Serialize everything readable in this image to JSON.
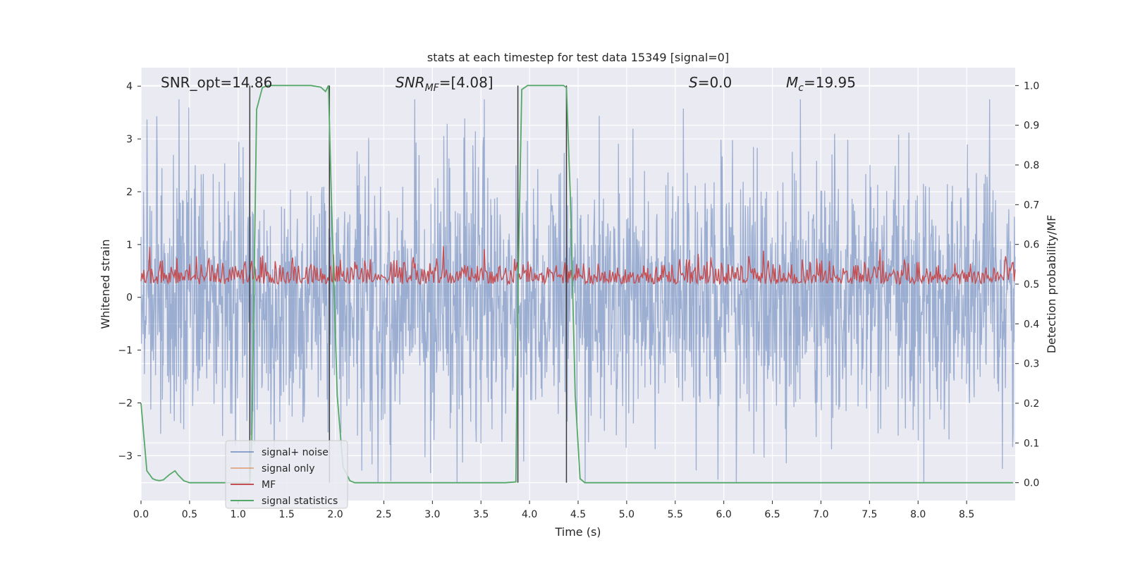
{
  "chart_data": {
    "type": "line",
    "title": "stats at each timestep for test data 15349 [signal=0]",
    "xlabel": "Time (s)",
    "ylabel": "Whitened strain",
    "y2label": "Detection probability/MF",
    "xlim": [
      0,
      9.0
    ],
    "ylim": [
      -3.85,
      4.35
    ],
    "y2lim": [
      -0.045,
      1.045
    ],
    "x_ticks": [
      "0.0",
      "0.5",
      "1.0",
      "1.5",
      "2.0",
      "2.5",
      "3.0",
      "3.5",
      "4.0",
      "4.5",
      "5.0",
      "5.5",
      "6.0",
      "6.5",
      "7.0",
      "7.5",
      "8.0",
      "8.5"
    ],
    "y_ticks": [
      "4",
      "3",
      "2",
      "1",
      "0",
      "−1",
      "−2",
      "−3"
    ],
    "y2_ticks": [
      "1.0",
      "0.9",
      "0.8",
      "0.7",
      "0.6",
      "0.5",
      "0.4",
      "0.3",
      "0.2",
      "0.1",
      "0.0"
    ],
    "grid": true,
    "annotations": [
      {
        "name": "snr-opt",
        "text": "SNR_opt=14.86"
      },
      {
        "name": "snr-mf",
        "text": "SNR_MF=[4.08]"
      },
      {
        "name": "s-value",
        "text": "S=0.0"
      },
      {
        "name": "mc-value",
        "text": "M_c=19.95"
      }
    ],
    "legend": {
      "placement": "lower-left",
      "entries": [
        {
          "label": "signal+ noise",
          "color": "#4c72b0"
        },
        {
          "label": "signal only",
          "color": "#dd8452"
        },
        {
          "label": "MF",
          "color": "#c44e52"
        },
        {
          "label": "signal statistics",
          "color": "#55a868"
        }
      ]
    },
    "series": [
      {
        "name": "signal+ noise",
        "axis": "left",
        "color": "#4c72b0",
        "description_values": {
          "mean": 0.0,
          "std": 1.0,
          "min": -3.5,
          "max": 3.75,
          "samples": 2048
        }
      },
      {
        "name": "signal only",
        "axis": "left",
        "color": "#dd8452",
        "values": []
      },
      {
        "name": "MF",
        "axis": "right",
        "color": "#c44e52",
        "description_values": {
          "min": 0.5,
          "max": 0.6,
          "baseline": 0.5
        }
      },
      {
        "name": "signal statistics",
        "axis": "right",
        "color": "#55a868",
        "x": [
          0.0,
          0.06,
          0.12,
          0.15,
          0.19,
          0.23,
          0.29,
          0.35,
          0.38,
          0.44,
          0.5,
          0.56,
          1.05,
          1.12,
          1.14,
          1.19,
          1.25,
          1.31,
          1.5,
          1.75,
          1.85,
          1.9,
          1.93,
          1.96,
          2.02,
          2.08,
          2.15,
          2.2,
          3.75,
          3.86,
          3.88,
          3.92,
          3.98,
          4.05,
          4.35,
          4.38,
          4.42,
          4.47,
          4.52,
          4.57,
          8.98
        ],
        "values": [
          0.2,
          0.03,
          0.01,
          0.007,
          0.005,
          0.007,
          0.02,
          0.03,
          0.02,
          0.005,
          0.0,
          0.0,
          0.0,
          0.0,
          0.1,
          0.94,
          0.995,
          1.0,
          1.0,
          1.0,
          0.996,
          0.985,
          1.0,
          0.72,
          0.22,
          0.04,
          0.005,
          0.0,
          0.0,
          0.002,
          0.48,
          0.99,
          1.0,
          1.0,
          1.0,
          0.995,
          0.72,
          0.22,
          0.01,
          0.0,
          0.0
        ]
      }
    ],
    "vertical_markers": [
      1.12,
      1.94,
      3.88,
      4.38
    ]
  }
}
